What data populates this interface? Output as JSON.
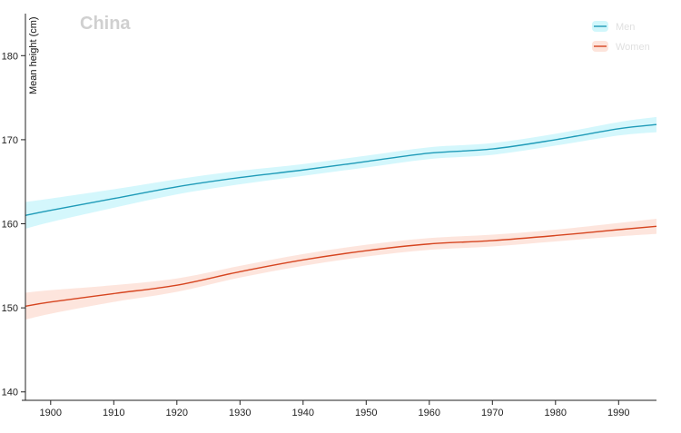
{
  "chart_data": {
    "type": "line",
    "title": "China",
    "xlabel": "",
    "ylabel": "Mean height (cm)",
    "xlim": [
      1896,
      1996
    ],
    "ylim": [
      139,
      185
    ],
    "x_ticks": [
      1900,
      1910,
      1920,
      1930,
      1940,
      1950,
      1960,
      1970,
      1980,
      1990
    ],
    "y_ticks": [
      140,
      150,
      160,
      170,
      180
    ],
    "grid": false,
    "legend_position": "top-right",
    "x": [
      1896,
      1900,
      1910,
      1920,
      1930,
      1940,
      1950,
      1960,
      1970,
      1980,
      1990,
      1996
    ],
    "series": [
      {
        "name": "Men",
        "color": "#1f9bb8",
        "band_color": "#ccf6fb",
        "values": [
          161.0,
          161.6,
          163.0,
          164.4,
          165.5,
          166.4,
          167.4,
          168.4,
          168.9,
          170.0,
          171.3,
          171.8
        ],
        "band_width": [
          1.6,
          1.4,
          1.1,
          0.9,
          0.8,
          0.7,
          0.7,
          0.7,
          0.7,
          0.7,
          0.8,
          0.9
        ]
      },
      {
        "name": "Women",
        "color": "#d64520",
        "band_color": "#fde1d7",
        "values": [
          150.2,
          150.7,
          151.7,
          152.7,
          154.3,
          155.7,
          156.8,
          157.6,
          158.0,
          158.6,
          159.3,
          159.7
        ],
        "band_width": [
          1.6,
          1.4,
          1.0,
          0.8,
          0.7,
          0.7,
          0.7,
          0.7,
          0.7,
          0.7,
          0.8,
          0.9
        ]
      }
    ]
  }
}
